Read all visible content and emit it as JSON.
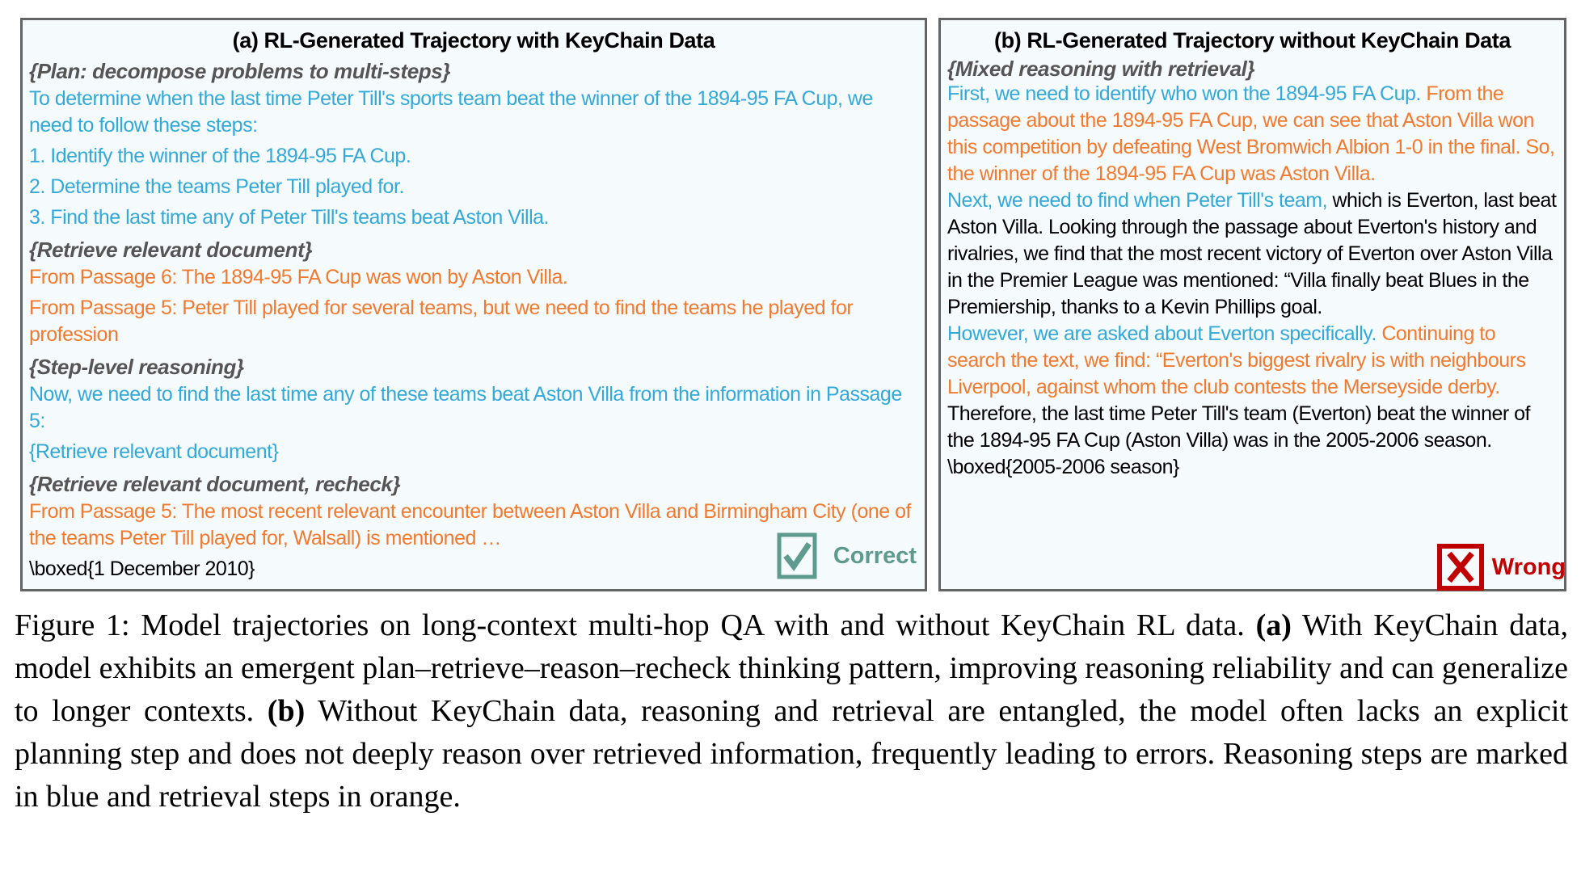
{
  "panel_a": {
    "title": "(a) RL-Generated Trajectory with KeyChain Data",
    "blocks": [
      {
        "type": "heading",
        "text": "{Plan: decompose problems to multi-steps}"
      },
      {
        "type": "blue",
        "text": "To determine when the last time Peter Till's sports team beat the winner of the 1894-95 FA Cup, we need to follow these steps:"
      },
      {
        "type": "blue",
        "text": "1. Identify the winner of the 1894-95 FA Cup."
      },
      {
        "type": "blue",
        "text": "2. Determine the teams Peter Till played for."
      },
      {
        "type": "blue",
        "text": "3. Find the last time any of Peter Till's teams beat Aston Villa."
      },
      {
        "type": "heading",
        "text": "{Retrieve relevant document}"
      },
      {
        "type": "orange",
        "text": "From Passage 6: The 1894-95 FA Cup was won by Aston Villa."
      },
      {
        "type": "orange",
        "text": "From Passage 5: Peter Till played for several teams, but we need to find the teams he played for profession"
      },
      {
        "type": "heading",
        "text": "{Step-level reasoning}"
      },
      {
        "type": "blue",
        "text": "Now, we need to find the last time any of these teams beat Aston Villa from the information in Passage 5:"
      },
      {
        "type": "blue",
        "text": "{Retrieve relevant document}"
      },
      {
        "type": "heading",
        "text": "{Retrieve relevant document, recheck}"
      },
      {
        "type": "orange",
        "text": "From Passage 5: The most recent relevant encounter between Aston Villa and Birmingham City (one of the teams Peter Till played for, Walsall) is mentioned …"
      },
      {
        "type": "black",
        "text": "\\boxed{1 December 2010}"
      }
    ],
    "badge": {
      "label": "Correct",
      "icon": "checkbox-check-icon",
      "color": "#5f9a8e"
    }
  },
  "panel_b": {
    "title": "(b) RL-Generated Trajectory without KeyChain Data",
    "heading": "{Mixed reasoning with retrieval}",
    "paragraphs": [
      [
        {
          "c": "blue",
          "t": "First, we need to identify who won the 1894-95 FA Cup. "
        },
        {
          "c": "orange",
          "t": "From the passage about the 1894-95 FA Cup, we can see that Aston Villa won this competition by defeating West Bromwich Albion 1-0 in the final. So, the winner of the 1894-95 FA Cup was Aston Villa."
        }
      ],
      [
        {
          "c": "blue",
          "t": "Next, we need to find when Peter Till's team, "
        },
        {
          "c": "black",
          "t": "which is Everton, last beat Aston Villa. Looking through the passage about Everton's history and rivalries, we find that the most recent victory of Everton over Aston Villa in the Premier League was mentioned: “Villa finally beat Blues in the Premiership, thanks to a Kevin Phillips goal."
        }
      ],
      [
        {
          "c": "blue",
          "t": "However, we are asked about Everton specifically. "
        },
        {
          "c": "orange",
          "t": "Continuing to search the text, we find: “Everton's biggest rivalry is with neighbours Liverpool, against whom the club contests the Merseyside derby."
        }
      ],
      [
        {
          "c": "black",
          "t": "Therefore, the last time Peter Till's team (Everton) beat the winner of the 1894-95 FA Cup (Aston Villa) was in the 2005-2006 season. \\boxed{2005-2006 season}"
        }
      ]
    ],
    "badge": {
      "label": "Wrong",
      "icon": "cross-box-icon",
      "color": "#c00000"
    }
  },
  "caption": {
    "prefix": "Figure 1: Model trajectories on long-context multi-hop QA with and without KeyChain RL data. ",
    "a_label": "(a)",
    "a_text": " With KeyChain data, model exhibits an emergent plan–retrieve–reason–recheck thinking pattern, improving reasoning reliability and can generalize to longer contexts. ",
    "b_label": "(b)",
    "b_text": " Without KeyChain data, reasoning and retrieval are entangled, the model often lacks an explicit planning step and does not deeply reason over retrieved information, frequently leading to errors. Reasoning steps are marked in blue and retrieval steps in orange."
  },
  "colors": {
    "reasoning": "#35a9d6",
    "retrieval": "#f07a30",
    "heading": "#555555",
    "panel_bg": "#f5fafd",
    "border": "#646464"
  }
}
